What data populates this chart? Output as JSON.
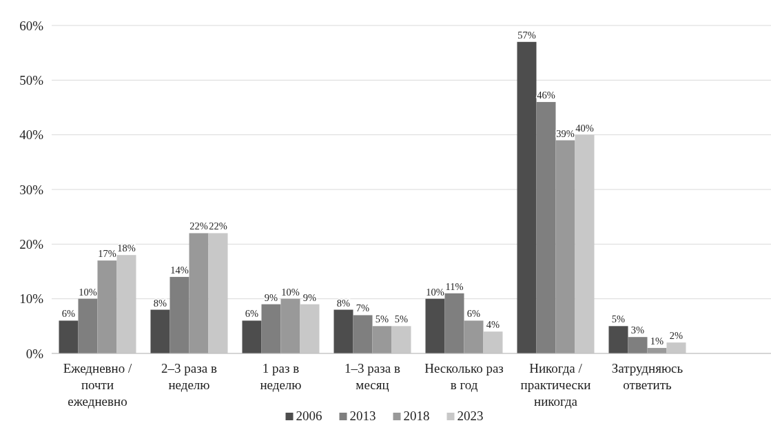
{
  "chart_data": {
    "type": "bar",
    "categories": [
      "Ежедневно / почти ежедневно",
      "2–3 раза в неделю",
      "1 раз в неделю",
      "1–3 раза в месяц",
      "Несколько раз в год",
      "Никогда / практически никогда",
      "Затрудняюсь ответить"
    ],
    "series": [
      {
        "name": "2006",
        "color": "#4d4d4d",
        "values": [
          6,
          8,
          6,
          8,
          10,
          57,
          5
        ],
        "value_labels": [
          "6%",
          "8%",
          "6%",
          "8%",
          "10%",
          "57%",
          "5%"
        ]
      },
      {
        "name": "2013",
        "color": "#7f7f7f",
        "values": [
          10,
          14,
          9,
          7,
          11,
          46,
          3
        ],
        "value_labels": [
          "10%",
          "14%",
          "9%",
          "7%",
          "11%",
          "46%",
          "3%"
        ]
      },
      {
        "name": "2018",
        "color": "#999999",
        "values": [
          17,
          22,
          10,
          5,
          6,
          39,
          1
        ],
        "value_labels": [
          "17%",
          "22%",
          "10%",
          "5%",
          "6%",
          "39%",
          "1%"
        ]
      },
      {
        "name": "2023",
        "color": "#c8c8c8",
        "values": [
          18,
          22,
          9,
          5,
          4,
          40,
          2
        ],
        "value_labels": [
          "18%",
          "22%",
          "9%",
          "5%",
          "4%",
          "40%",
          "2%"
        ]
      }
    ],
    "ylim": [
      0,
      60
    ],
    "yticks": [
      {
        "value": 0,
        "label": "0%"
      },
      {
        "value": 10,
        "label": "10%"
      },
      {
        "value": 20,
        "label": "20%"
      },
      {
        "value": 30,
        "label": "30%"
      },
      {
        "value": 40,
        "label": "40%"
      },
      {
        "value": 50,
        "label": "50%"
      },
      {
        "value": 60,
        "label": "60%"
      }
    ],
    "grid": "y",
    "legend": "bottom"
  }
}
